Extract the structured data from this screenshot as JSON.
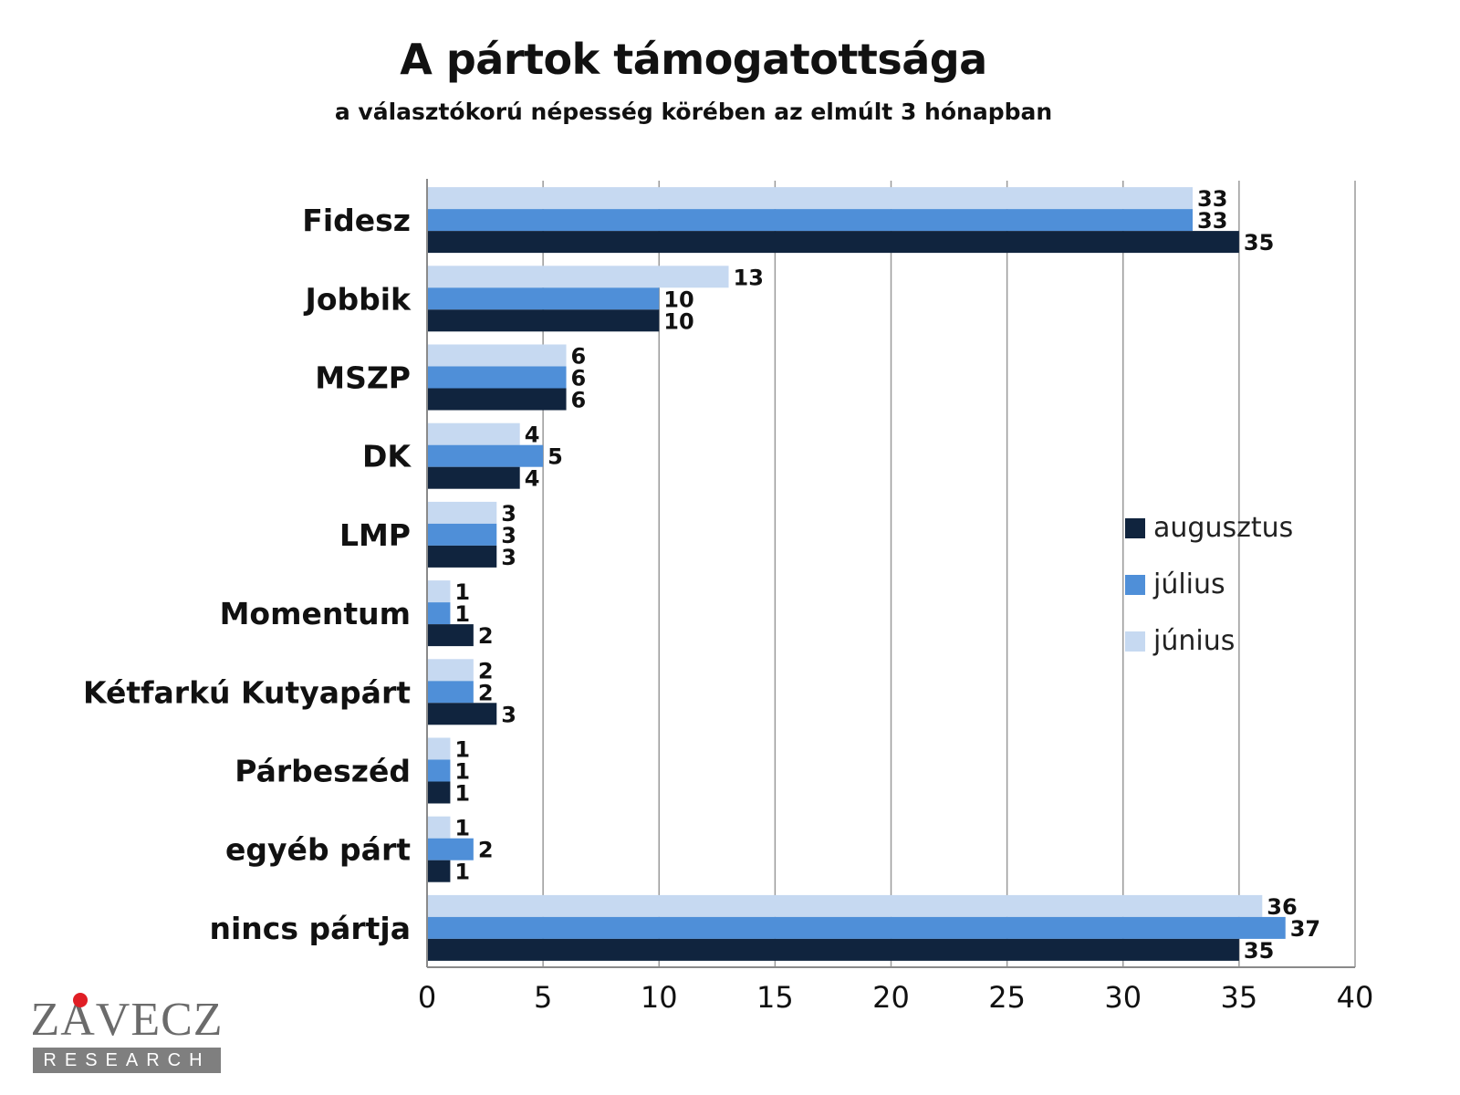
{
  "chart_data": {
    "type": "bar",
    "orientation": "horizontal",
    "title": "A pártok támogatottsága",
    "subtitle": "a választókorú népesség körében az elmúlt 3 hónapban",
    "categories": [
      "Fidesz",
      "Jobbik",
      "MSZP",
      "DK",
      "LMP",
      "Momentum",
      "Kétfarkú Kutyapárt",
      "Párbeszéd",
      "egyéb párt",
      "nincs pártja"
    ],
    "series": [
      {
        "name": "június",
        "color": "#c6d9f1",
        "values": [
          33,
          13,
          6,
          4,
          3,
          1,
          2,
          1,
          1,
          36
        ]
      },
      {
        "name": "július",
        "color": "#4f8fd8",
        "values": [
          33,
          10,
          6,
          5,
          3,
          1,
          2,
          1,
          2,
          37
        ]
      },
      {
        "name": "augusztus",
        "color": "#10243e",
        "values": [
          35,
          10,
          6,
          4,
          3,
          2,
          3,
          1,
          1,
          35
        ]
      }
    ],
    "xlim": [
      0,
      40
    ],
    "xticks": [
      0,
      5,
      10,
      15,
      20,
      25,
      30,
      35,
      40
    ],
    "grid": true,
    "legend_position": "right",
    "legend_order": [
      "augusztus",
      "július",
      "június"
    ],
    "data_labels": true
  },
  "logo": {
    "name": "ZÁVECZ",
    "tagline": "RESEARCH"
  }
}
